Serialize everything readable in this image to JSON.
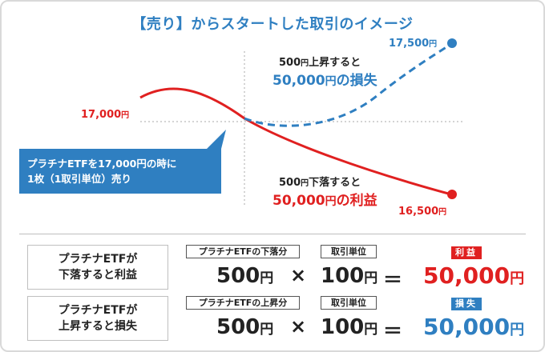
{
  "title": "【売り】からスタートした取引のイメージ",
  "chart": {
    "start_label": "17,000",
    "up_end_label": "17,500",
    "down_end_label": "16,500",
    "yen": "円",
    "up_small_a": "500",
    "up_small_b": "上昇すると",
    "up_big_a": "50,000",
    "up_big_b": "の損失",
    "down_small_a": "500",
    "down_small_b": "下落すると",
    "down_big_a": "50,000",
    "down_big_b": "の利益",
    "callout_line1": "プラチナETFを17,000円の時に",
    "callout_line2": "1枚（1取引単位）売り",
    "colors": {
      "profit": "#e02020",
      "loss": "#2f7fc1",
      "grid": "#aaaaaa"
    }
  },
  "rows": [
    {
      "label_line1": "プラチナETFが",
      "label_line2": "下落すると利益",
      "tag1": "プラチナETFの下落分",
      "tag2": "取引単位",
      "value1": "500",
      "value2": "100",
      "result_tag": "利益",
      "result": "50,000"
    },
    {
      "label_line1": "プラチナETFが",
      "label_line2": "上昇すると損失",
      "tag1": "プラチナETFの上昇分",
      "tag2": "取引単位",
      "value1": "500",
      "value2": "100",
      "result_tag": "損失",
      "result": "50,000"
    }
  ],
  "symbols": {
    "times": "×",
    "equals": "＝",
    "yen": "円"
  }
}
